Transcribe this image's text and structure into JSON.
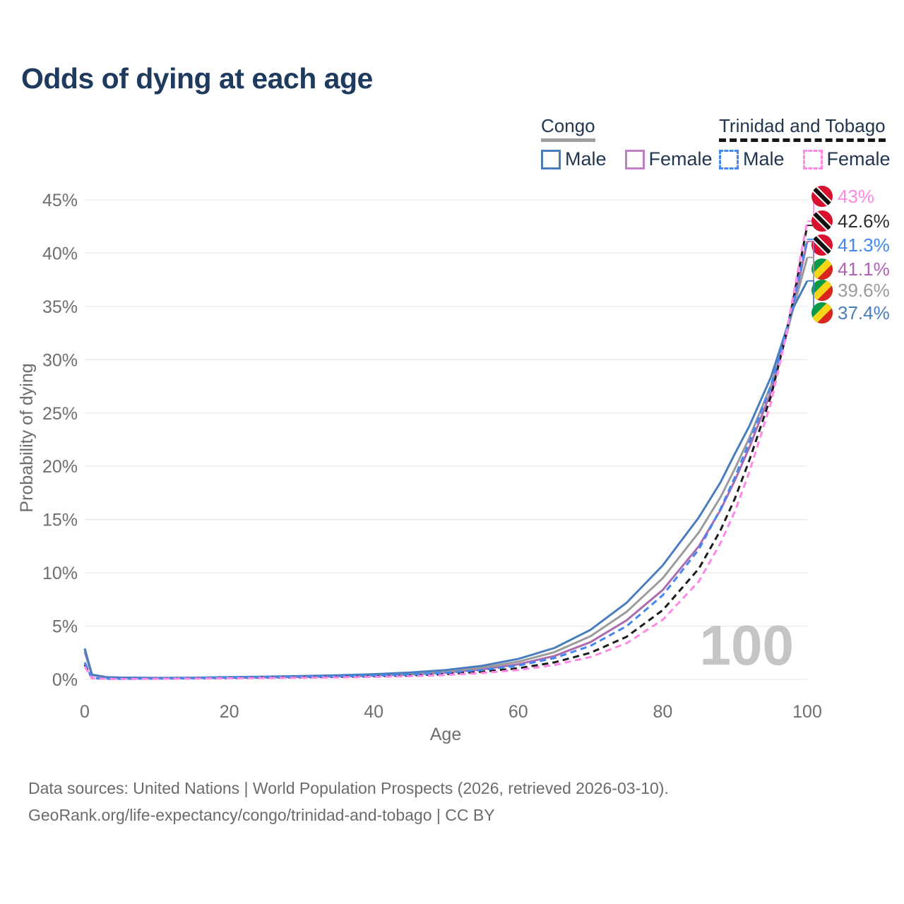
{
  "title": "Odds of dying at each age",
  "legend": {
    "groups": [
      {
        "id": "congo",
        "title": "Congo",
        "underline": "solid",
        "underline_color": "#9e9e9e",
        "items": [
          {
            "label": "Male",
            "color": "#4a7dbf",
            "dashed": false
          },
          {
            "label": "Female",
            "color": "#c07fc4",
            "dashed": false
          }
        ]
      },
      {
        "id": "trinidad-and-tobago",
        "title": "Trinidad and Tobago",
        "underline": "dashed",
        "underline_color": "#161616",
        "items": [
          {
            "label": "Male",
            "color": "#4188f2",
            "dashed": true
          },
          {
            "label": "Female",
            "color": "#ff87e6",
            "dashed": true
          }
        ]
      }
    ]
  },
  "chart_data": {
    "type": "line",
    "title": "Odds of dying at each age",
    "xlabel": "Age",
    "ylabel": "Probability of dying",
    "xticks": [
      0,
      20,
      40,
      60,
      80,
      100
    ],
    "yticks_pct": [
      0,
      5,
      10,
      15,
      20,
      25,
      30,
      35,
      40,
      45
    ],
    "xlim": [
      0,
      100
    ],
    "ylim_pct": [
      0,
      45
    ],
    "grid": "horizontal-only",
    "legend_position": "top-right",
    "watermark": "100",
    "series": [
      {
        "id": "congo-female",
        "name": "Congo Female",
        "color": "#ad6caf",
        "label_color": "#b062b8",
        "dashed": false,
        "flag": "congo",
        "end_label": "41.1%",
        "points": [
          [
            0,
            2.6
          ],
          [
            1,
            0.4
          ],
          [
            3,
            0.19
          ],
          [
            5,
            0.15
          ],
          [
            10,
            0.12
          ],
          [
            15,
            0.13
          ],
          [
            20,
            0.16
          ],
          [
            25,
            0.19
          ],
          [
            30,
            0.23
          ],
          [
            35,
            0.28
          ],
          [
            40,
            0.36
          ],
          [
            45,
            0.47
          ],
          [
            50,
            0.65
          ],
          [
            55,
            0.94
          ],
          [
            60,
            1.42
          ],
          [
            65,
            2.2
          ],
          [
            70,
            3.5
          ],
          [
            75,
            5.55
          ],
          [
            80,
            8.4
          ],
          [
            85,
            12.5
          ],
          [
            88,
            15.9
          ],
          [
            90,
            18.7
          ],
          [
            92,
            21.8
          ],
          [
            95,
            27.0
          ],
          [
            97,
            32.0
          ],
          [
            98,
            34.7
          ],
          [
            100,
            41.1
          ]
        ]
      },
      {
        "id": "congo-total",
        "name": "Congo (both sexes)",
        "color": "#9b9b9b",
        "label_color": "#9b9b9b",
        "dashed": false,
        "flag": "congo",
        "end_label": "39.6%",
        "points": [
          [
            0,
            2.75
          ],
          [
            1,
            0.43
          ],
          [
            3,
            0.2
          ],
          [
            5,
            0.16
          ],
          [
            10,
            0.13
          ],
          [
            15,
            0.14
          ],
          [
            20,
            0.18
          ],
          [
            25,
            0.22
          ],
          [
            30,
            0.27
          ],
          [
            35,
            0.33
          ],
          [
            40,
            0.42
          ],
          [
            45,
            0.55
          ],
          [
            50,
            0.76
          ],
          [
            55,
            1.1
          ],
          [
            60,
            1.66
          ],
          [
            65,
            2.56
          ],
          [
            70,
            4.05
          ],
          [
            75,
            6.35
          ],
          [
            80,
            9.5
          ],
          [
            85,
            13.8
          ],
          [
            88,
            17.1
          ],
          [
            90,
            19.8
          ],
          [
            92,
            22.7
          ],
          [
            95,
            27.6
          ],
          [
            97,
            32.2
          ],
          [
            98,
            34.6
          ],
          [
            100,
            39.6
          ]
        ]
      },
      {
        "id": "congo-male",
        "name": "Congo Male",
        "color": "#4a7dbf",
        "label_color": "#4a7dbf",
        "dashed": false,
        "flag": "congo",
        "end_label": "37.4%",
        "points": [
          [
            0,
            2.9
          ],
          [
            1,
            0.45
          ],
          [
            3,
            0.22
          ],
          [
            5,
            0.17
          ],
          [
            10,
            0.14
          ],
          [
            15,
            0.16
          ],
          [
            20,
            0.21
          ],
          [
            25,
            0.26
          ],
          [
            30,
            0.32
          ],
          [
            35,
            0.39
          ],
          [
            40,
            0.49
          ],
          [
            45,
            0.64
          ],
          [
            50,
            0.88
          ],
          [
            55,
            1.28
          ],
          [
            60,
            1.92
          ],
          [
            65,
            2.95
          ],
          [
            70,
            4.65
          ],
          [
            75,
            7.2
          ],
          [
            80,
            10.7
          ],
          [
            85,
            15.2
          ],
          [
            88,
            18.5
          ],
          [
            90,
            21.2
          ],
          [
            92,
            23.8
          ],
          [
            95,
            28.4
          ],
          [
            97,
            32.6
          ],
          [
            98,
            34.8
          ],
          [
            100,
            37.4
          ]
        ]
      },
      {
        "id": "trinidad-and-tobago-total",
        "name": "Trinidad and Tobago (both sexes)",
        "color": "#1c1c1c",
        "label_color": "#2e2e2e",
        "dashed": true,
        "flag": "tt",
        "end_label": "42.6%",
        "points": [
          [
            0,
            1.4
          ],
          [
            1,
            0.11
          ],
          [
            3,
            0.06
          ],
          [
            5,
            0.05
          ],
          [
            10,
            0.07
          ],
          [
            15,
            0.1
          ],
          [
            20,
            0.14
          ],
          [
            25,
            0.17
          ],
          [
            30,
            0.2
          ],
          [
            35,
            0.24
          ],
          [
            40,
            0.29
          ],
          [
            45,
            0.37
          ],
          [
            50,
            0.5
          ],
          [
            55,
            0.72
          ],
          [
            60,
            1.05
          ],
          [
            65,
            1.6
          ],
          [
            70,
            2.5
          ],
          [
            75,
            4.0
          ],
          [
            80,
            6.5
          ],
          [
            85,
            10.4
          ],
          [
            88,
            14.0
          ],
          [
            90,
            17.0
          ],
          [
            92,
            20.6
          ],
          [
            95,
            26.6
          ],
          [
            97,
            32.2
          ],
          [
            98,
            35.4
          ],
          [
            100,
            42.6
          ]
        ]
      },
      {
        "id": "trinidad-and-tobago-male",
        "name": "Trinidad and Tobago Male",
        "color": "#4188f2",
        "label_color": "#4188f2",
        "dashed": true,
        "flag": "tt",
        "end_label": "41.3%",
        "points": [
          [
            0,
            1.6
          ],
          [
            1,
            0.12
          ],
          [
            3,
            0.07
          ],
          [
            5,
            0.06
          ],
          [
            10,
            0.08
          ],
          [
            15,
            0.12
          ],
          [
            20,
            0.17
          ],
          [
            25,
            0.2
          ],
          [
            30,
            0.24
          ],
          [
            35,
            0.29
          ],
          [
            40,
            0.35
          ],
          [
            45,
            0.45
          ],
          [
            50,
            0.62
          ],
          [
            55,
            0.88
          ],
          [
            60,
            1.3
          ],
          [
            65,
            2.0
          ],
          [
            70,
            3.15
          ],
          [
            75,
            5.0
          ],
          [
            80,
            7.9
          ],
          [
            85,
            12.2
          ],
          [
            88,
            16.0
          ],
          [
            90,
            19.0
          ],
          [
            92,
            22.3
          ],
          [
            95,
            27.6
          ],
          [
            97,
            32.4
          ],
          [
            98,
            35.0
          ],
          [
            100,
            41.3
          ]
        ]
      },
      {
        "id": "trinidad-and-tobago-female",
        "name": "Trinidad and Tobago Female",
        "color": "#ff87e6",
        "label_color": "#ff87e6",
        "dashed": true,
        "flag": "tt",
        "end_label": "43%",
        "points": [
          [
            0,
            1.2
          ],
          [
            1,
            0.1
          ],
          [
            3,
            0.05
          ],
          [
            5,
            0.04
          ],
          [
            10,
            0.06
          ],
          [
            15,
            0.08
          ],
          [
            20,
            0.11
          ],
          [
            25,
            0.13
          ],
          [
            30,
            0.16
          ],
          [
            35,
            0.19
          ],
          [
            40,
            0.23
          ],
          [
            45,
            0.3
          ],
          [
            50,
            0.41
          ],
          [
            55,
            0.6
          ],
          [
            60,
            0.88
          ],
          [
            65,
            1.35
          ],
          [
            70,
            2.1
          ],
          [
            75,
            3.4
          ],
          [
            80,
            5.6
          ],
          [
            85,
            9.2
          ],
          [
            88,
            12.8
          ],
          [
            90,
            15.8
          ],
          [
            92,
            19.5
          ],
          [
            95,
            26.0
          ],
          [
            97,
            32.0
          ],
          [
            98,
            35.8
          ],
          [
            100,
            43.0
          ]
        ]
      }
    ],
    "flag_colors": {
      "tt": {
        "field": "#d8122e",
        "band": "#111111",
        "fimbriation": "#ffffff"
      },
      "congo": {
        "upper": "#0a9a49",
        "band": "#f7d618",
        "lower": "#dc241f"
      }
    }
  },
  "footer": {
    "line1": "Data sources: United Nations | World Population Prospects (2026, retrieved 2026-03-10).",
    "line2": "GeoRank.org/life-expectancy/congo/trinidad-and-tobago | CC BY"
  },
  "colors": {
    "title_text": "#1e3a5f",
    "legend_text": "#223650",
    "axis_text": "#6e6e6e",
    "gridline": "#e9e9e9",
    "watermark": "#c5c5c5",
    "footer_text": "#6b6b6b"
  }
}
